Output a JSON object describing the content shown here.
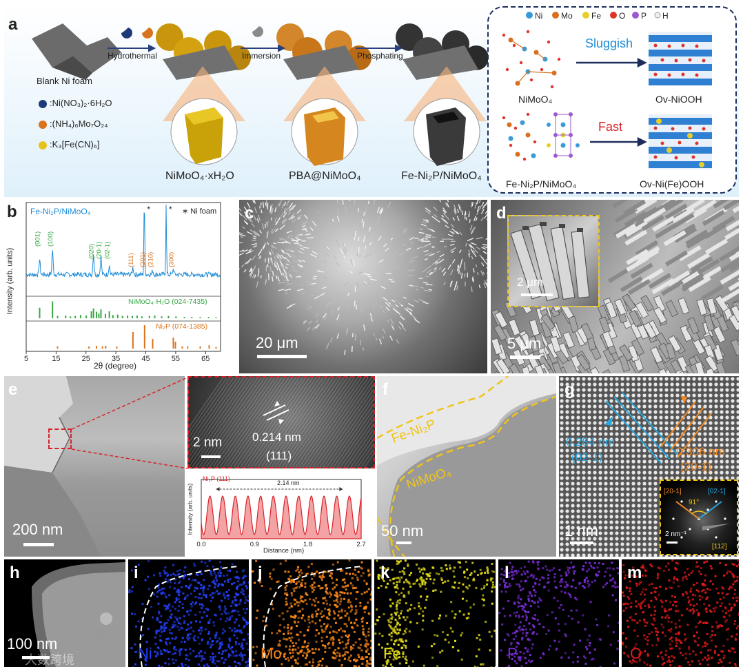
{
  "panel_a": {
    "label": "a",
    "blank_foam": "Blank Ni foam",
    "reagents": [
      {
        "formula": ":Ni(NO₃)₂·6H₂O",
        "color": "#1f3a78"
      },
      {
        "formula": ":(NH₄)₆Mo₇O₂₄",
        "color": "#d9731d"
      },
      {
        "formula": ":K₃[Fe(CN)₆]",
        "color": "#e8c21c"
      }
    ],
    "steps": [
      "Hydrothermal",
      "Immersion",
      "Phosphating"
    ],
    "products": [
      "NiMoO₄·xH₂O",
      "PBA@NiMoO₄",
      "Fe-Ni₂P/NiMoO₄"
    ],
    "legend": [
      {
        "el": "Ni",
        "color": "#3a9ad9"
      },
      {
        "el": "Mo",
        "color": "#d96f1e"
      },
      {
        "el": "Fe",
        "color": "#e7cf2a"
      },
      {
        "el": "O",
        "color": "#e0342b"
      },
      {
        "el": "P",
        "color": "#9b59d0"
      },
      {
        "el": "H",
        "color": "#f0f0f0"
      }
    ],
    "sluggish": "Sluggish",
    "fast": "Fast",
    "struct_labels": [
      "NiMoO₄",
      "Fe-Ni₂P/NiMoO₄",
      "Ov-NiOOH",
      "Ov-Ni(Fe)OOH"
    ]
  },
  "panel_b": {
    "label": "b",
    "legend_star": "∗ Ni foam",
    "star": "*"
  },
  "chart_data": [
    {
      "type": "line",
      "title": "Fe-Ni₂P/NiMoO₄",
      "xlabel": "2θ (degree)",
      "ylabel": "Intensity (arb. units)",
      "xlim": [
        5,
        70
      ],
      "xticks": [
        5,
        15,
        25,
        35,
        45,
        55,
        65
      ],
      "peak_labels": [
        {
          "x": 9.5,
          "label": "(001)"
        },
        {
          "x": 13.8,
          "label": "(100)"
        },
        {
          "x": 27.5,
          "label": "(020)"
        },
        {
          "x": 30.0,
          "label": "(20-1)"
        },
        {
          "x": 32.8,
          "label": "(02-1)"
        },
        {
          "x": 40.7,
          "label": "(111)"
        },
        {
          "x": 44.6,
          "label": "(201)"
        },
        {
          "x": 47.3,
          "label": "(210)"
        },
        {
          "x": 54.2,
          "label": "(300)"
        }
      ],
      "nifoam_peaks": [
        44.5,
        51.8
      ],
      "references": [
        {
          "name": "NiMoO₄·H₂O (024-7435)",
          "color": "#39a845",
          "x": [
            9.5,
            13.8,
            15.5,
            18.2,
            19.8,
            21.4,
            23.2,
            25.1,
            26.8,
            27.5,
            28.5,
            29.3,
            30.0,
            31.5,
            32.8,
            34.0,
            35.6,
            37.2,
            38.9,
            40.5,
            42.1,
            43.7,
            46.2,
            48.0,
            50.3,
            52.6,
            55.1,
            57.9,
            60.4,
            63.2,
            66.0,
            68.5
          ],
          "y": [
            0.45,
            0.72,
            0.1,
            0.12,
            0.08,
            0.1,
            0.14,
            0.12,
            0.3,
            0.42,
            0.28,
            0.2,
            0.38,
            0.18,
            0.3,
            0.14,
            0.16,
            0.1,
            0.12,
            0.1,
            0.12,
            0.08,
            0.1,
            0.12,
            0.08,
            0.1,
            0.08,
            0.06,
            0.06,
            0.05,
            0.05,
            0.04
          ]
        },
        {
          "name": "Ni₂P (074-1385)",
          "color": "#d9731d",
          "x": [
            15.5,
            26.0,
            28.5,
            30.5,
            31.6,
            35.3,
            40.7,
            44.6,
            47.3,
            54.2,
            54.9,
            57.2,
            59.0,
            63.2,
            66.2,
            68.5
          ],
          "y": [
            0.08,
            0.08,
            0.1,
            0.08,
            0.1,
            0.08,
            0.6,
            0.85,
            0.35,
            0.4,
            0.25,
            0.08,
            0.08,
            0.08,
            0.12,
            0.06
          ]
        }
      ]
    },
    {
      "type": "line",
      "title": "Ni₂P (111)",
      "xlabel": "Distance (nm)",
      "ylabel": "Intensity (arb. units)",
      "xlim": [
        0.0,
        2.7
      ],
      "xticks": [
        0.0,
        0.9,
        1.8,
        2.7
      ],
      "xticklabels": [
        "0.0",
        "0.9",
        "1.8",
        "2.7"
      ],
      "periods": 13,
      "period_nm": 0.214,
      "annotation": "2.14 nm",
      "annotation_range": [
        0.25,
        2.39
      ]
    }
  ],
  "panel_c": {
    "label": "c",
    "scale": "20 μm"
  },
  "panel_d": {
    "label": "d",
    "scale": "5 μm",
    "inset_scale": "2 μm"
  },
  "panel_e": {
    "label": "e",
    "scale": "200 nm",
    "inset_scale": "2 nm",
    "d_spacing": "0.214 nm",
    "plane": "(111)"
  },
  "panel_f": {
    "label": "f",
    "scale": "50 nm",
    "layer_outer": "Fe-Ni₂P",
    "layer_inner": "NiMoO₄"
  },
  "panel_g": {
    "label": "g",
    "scale": "1 nm",
    "d1": "0.284 nm",
    "p1": "(02-1)",
    "d2": "0.306 nm",
    "p2": "(20-1)",
    "saed_a": "[20-1]",
    "saed_b": "[02-1]",
    "angle": "91°",
    "zone": "[112]",
    "saed_scale": "2 nm⁻¹"
  },
  "maps": [
    {
      "label": "h",
      "element": "",
      "color": "#9a9a9a",
      "scale": "100 nm"
    },
    {
      "label": "i",
      "element": "Ni",
      "color": "#2440ff"
    },
    {
      "label": "j",
      "element": "Mo",
      "color": "#ff8a1a"
    },
    {
      "label": "k",
      "element": "Fe",
      "color": "#e9e21a"
    },
    {
      "label": "l",
      "element": "P",
      "color": "#7a2cd8"
    },
    {
      "label": "m",
      "element": "O",
      "color": "#e21a1a"
    }
  ],
  "watermark": "大数跨境"
}
